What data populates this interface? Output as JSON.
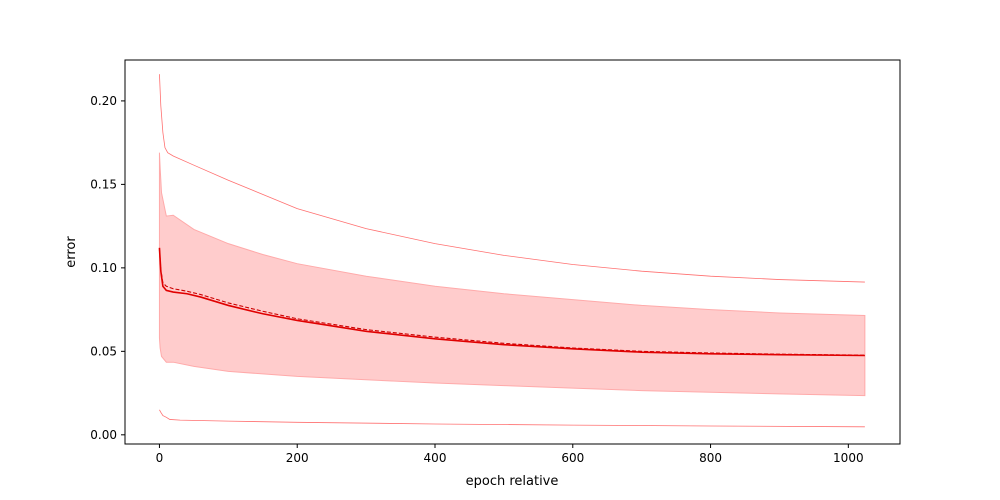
{
  "chart_data": {
    "type": "line",
    "title": "",
    "xlabel": "epoch relative",
    "ylabel": "error",
    "xlim": [
      -50,
      1075
    ],
    "ylim": [
      -0.0055,
      0.2245
    ],
    "x_ticks": [
      0,
      200,
      400,
      600,
      800,
      1000
    ],
    "y_ticks": [
      0.0,
      0.05,
      0.1,
      0.15,
      0.2
    ],
    "x_tick_labels": [
      "0",
      "200",
      "400",
      "600",
      "800",
      "1000"
    ],
    "y_tick_labels": [
      "0.00",
      "0.05",
      "0.10",
      "0.15",
      "0.20"
    ],
    "grid": false,
    "legend": "none",
    "colors": {
      "line": "#e00000",
      "band": "#ffcccc",
      "band_edge": "#ffaaaa",
      "dashed": "#cc0000",
      "extreme": "#ff7070"
    },
    "series": [
      {
        "style": "solid",
        "role": "mean",
        "x": [
          0,
          2,
          5,
          10,
          20,
          40,
          60,
          100,
          150,
          200,
          300,
          400,
          500,
          600,
          700,
          800,
          900,
          1024
        ],
        "y": [
          0.112,
          0.098,
          0.089,
          0.0865,
          0.0855,
          0.0845,
          0.0825,
          0.0775,
          0.0725,
          0.0685,
          0.062,
          0.0575,
          0.054,
          0.0515,
          0.0495,
          0.0485,
          0.048,
          0.0475
        ]
      },
      {
        "style": "dashed",
        "role": "median",
        "x": [
          0,
          2,
          5,
          10,
          20,
          40,
          60,
          100,
          150,
          200,
          300,
          400,
          500,
          600,
          700,
          800,
          900,
          1024
        ],
        "y": [
          0.111,
          0.099,
          0.091,
          0.089,
          0.0875,
          0.086,
          0.084,
          0.079,
          0.074,
          0.0695,
          0.063,
          0.0585,
          0.0548,
          0.052,
          0.05,
          0.049,
          0.0483,
          0.0477
        ]
      },
      {
        "style": "band",
        "role": "spread",
        "x": [
          0,
          1,
          3,
          10,
          20,
          50,
          100,
          150,
          200,
          300,
          400,
          500,
          600,
          700,
          800,
          900,
          1024
        ],
        "upper": [
          0.169,
          0.16,
          0.145,
          0.131,
          0.1315,
          0.123,
          0.1145,
          0.108,
          0.1025,
          0.095,
          0.089,
          0.0845,
          0.081,
          0.0775,
          0.075,
          0.073,
          0.0715
        ],
        "lower": [
          0.058,
          0.052,
          0.047,
          0.0435,
          0.0435,
          0.041,
          0.038,
          0.0365,
          0.035,
          0.033,
          0.031,
          0.0295,
          0.028,
          0.0265,
          0.0255,
          0.0245,
          0.0235
        ]
      },
      {
        "style": "thin",
        "role": "max",
        "x": [
          0,
          2,
          5,
          8,
          12,
          20,
          50,
          100,
          200,
          300,
          400,
          500,
          600,
          700,
          800,
          900,
          1024
        ],
        "y": [
          0.216,
          0.197,
          0.181,
          0.172,
          0.169,
          0.167,
          0.1615,
          0.1525,
          0.1355,
          0.1235,
          0.1145,
          0.1075,
          0.102,
          0.098,
          0.095,
          0.093,
          0.0915
        ]
      },
      {
        "style": "thin",
        "role": "min",
        "x": [
          0,
          2,
          5,
          10,
          15,
          30,
          100,
          200,
          400,
          600,
          800,
          1024
        ],
        "y": [
          0.015,
          0.0135,
          0.0115,
          0.0105,
          0.0092,
          0.0088,
          0.0082,
          0.0075,
          0.0065,
          0.0058,
          0.0053,
          0.0048
        ]
      }
    ]
  }
}
